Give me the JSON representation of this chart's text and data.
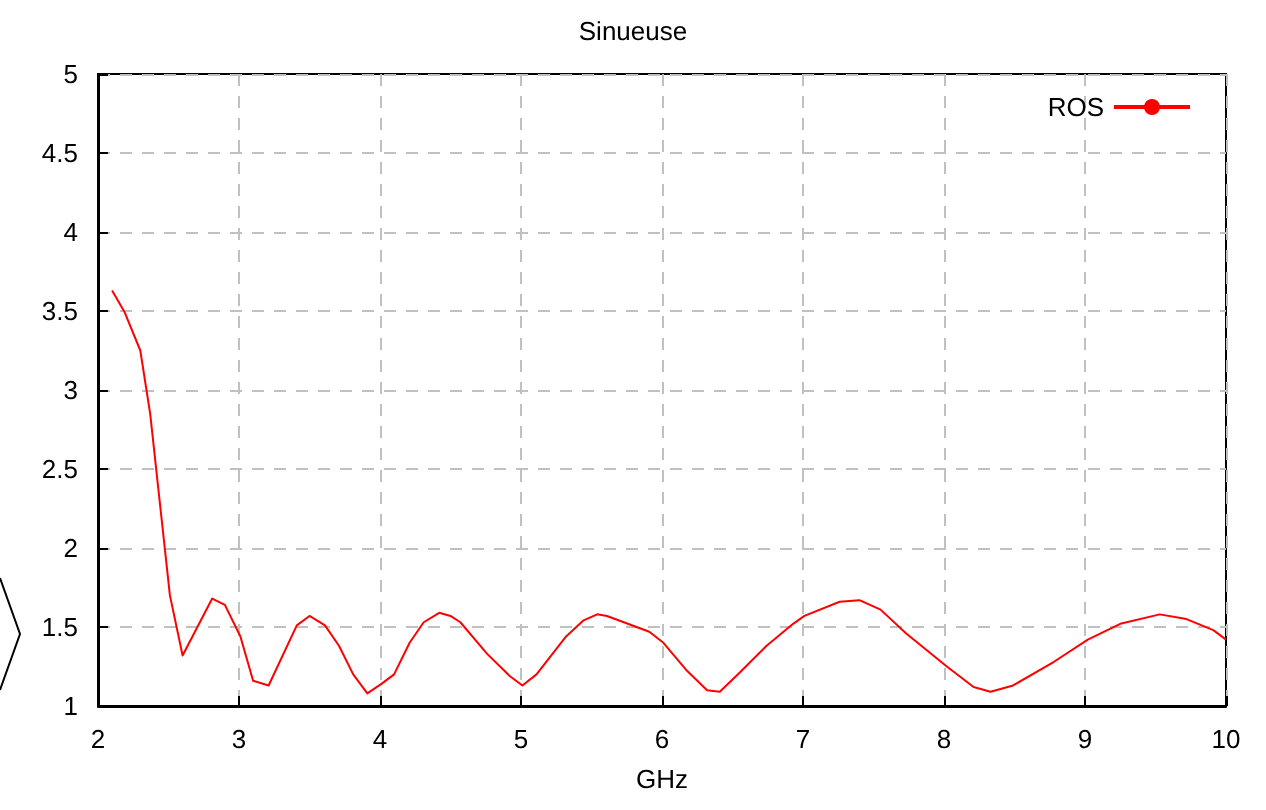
{
  "chart_data": {
    "type": "line",
    "title": "Sinueuse",
    "xlabel": "GHz",
    "x": [
      2.1,
      2.19,
      2.3,
      2.37,
      2.51,
      2.6,
      2.81,
      2.9,
      3.01,
      3.1,
      3.21,
      3.41,
      3.5,
      3.61,
      3.71,
      3.81,
      3.91,
      4.01,
      4.1,
      4.21,
      4.31,
      4.42,
      4.5,
      4.57,
      4.76,
      4.92,
      5.01,
      5.11,
      5.32,
      5.44,
      5.54,
      5.61,
      5.91,
      6.01,
      6.17,
      6.32,
      6.41,
      6.55,
      6.74,
      6.93,
      7.01,
      7.26,
      7.4,
      7.55,
      7.73,
      8.02,
      8.21,
      8.33,
      8.49,
      8.78,
      9.02,
      9.25,
      9.53,
      9.72,
      9.91,
      10
    ],
    "series": [
      {
        "name": "ROS",
        "color": "#ff0000",
        "values": [
          3.63,
          3.49,
          3.25,
          2.85,
          1.7,
          1.32,
          1.68,
          1.64,
          1.44,
          1.16,
          1.13,
          1.51,
          1.57,
          1.51,
          1.38,
          1.2,
          1.08,
          1.14,
          1.2,
          1.4,
          1.53,
          1.59,
          1.57,
          1.53,
          1.33,
          1.19,
          1.13,
          1.2,
          1.44,
          1.54,
          1.58,
          1.57,
          1.47,
          1.4,
          1.23,
          1.1,
          1.09,
          1.21,
          1.38,
          1.52,
          1.57,
          1.66,
          1.67,
          1.61,
          1.46,
          1.25,
          1.12,
          1.09,
          1.13,
          1.28,
          1.42,
          1.52,
          1.58,
          1.55,
          1.48,
          1.42
        ]
      }
    ],
    "xlim": [
      2,
      10
    ],
    "xticks": [
      2,
      3,
      4,
      5,
      6,
      7,
      8,
      9,
      10
    ],
    "ylim": [
      1,
      5
    ],
    "yticks": [
      1,
      1.5,
      2,
      2.5,
      3,
      3.5,
      4,
      4.5,
      5
    ],
    "grid": true,
    "legend": "top right",
    "marker": "none",
    "line_style": "solid"
  }
}
